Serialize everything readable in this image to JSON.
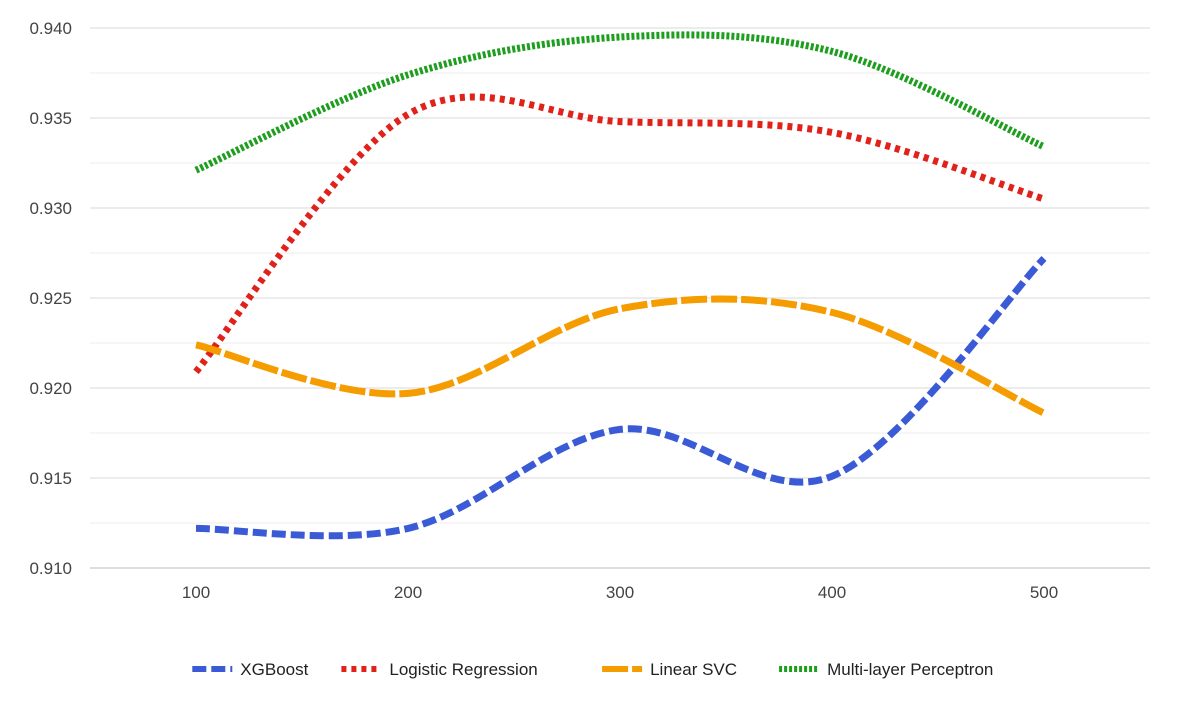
{
  "chart_data": {
    "type": "line",
    "title": "",
    "xlabel": "",
    "ylabel": "",
    "x": [
      100,
      200,
      300,
      400,
      500
    ],
    "xlim": [
      50,
      550
    ],
    "ylim": [
      0.91,
      0.94
    ],
    "yticks": [
      "0.910",
      "0.915",
      "0.920",
      "0.925",
      "0.930",
      "0.935",
      "0.940"
    ],
    "xticks": [
      "100",
      "200",
      "300",
      "400",
      "500"
    ],
    "grid": true,
    "legend_position": "bottom",
    "series": [
      {
        "name": "XGBoost",
        "color": "#3b5bd6",
        "dash": "dashed",
        "values": [
          0.9122,
          0.9122,
          0.9177,
          0.9151,
          0.9272
        ]
      },
      {
        "name": "Logistic Regression",
        "color": "#e0221b",
        "dash": "dotted",
        "values": [
          0.9209,
          0.9352,
          0.9348,
          0.9342,
          0.9305
        ]
      },
      {
        "name": "Linear SVC",
        "color": "#f59c00",
        "dash": "long-dash",
        "values": [
          0.9224,
          0.9197,
          0.9244,
          0.9242,
          0.9186
        ]
      },
      {
        "name": "Multi-layer Perceptron",
        "color": "#1e9e1e",
        "dash": "dense-dotted",
        "values": [
          0.9321,
          0.9374,
          0.9395,
          0.9387,
          0.9334
        ]
      }
    ]
  }
}
